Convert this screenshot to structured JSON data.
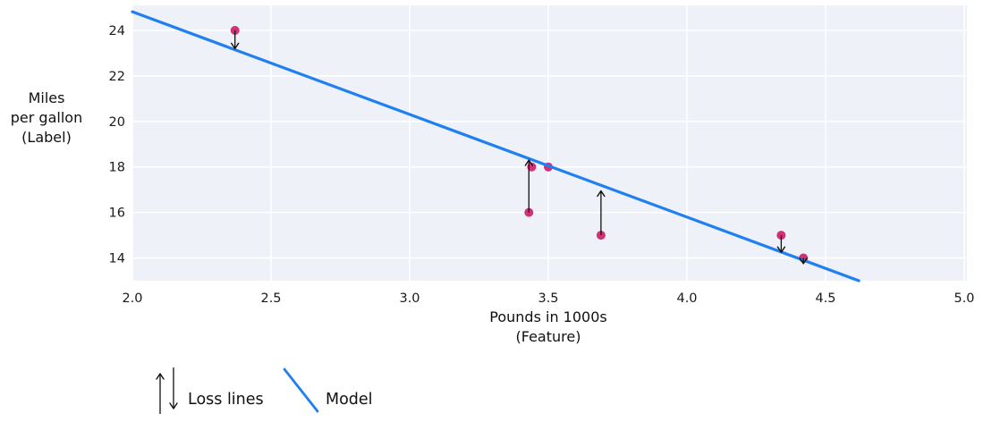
{
  "chart_data": {
    "type": "scatter",
    "title": "",
    "xlabel": "Pounds in 1000s\n(Feature)",
    "ylabel": "Miles\nper gallon\n(Label)",
    "xlim": [
      2.0,
      5.0
    ],
    "ylim": [
      13.0,
      25.1
    ],
    "grid": true,
    "x_ticks": [
      2.0,
      2.5,
      3.0,
      3.5,
      4.0,
      4.5,
      5.0
    ],
    "x_tick_labels": [
      "2.0",
      "2.5",
      "3.0",
      "3.5",
      "4.0",
      "4.5",
      "5.0"
    ],
    "y_ticks": [
      14,
      16,
      18,
      20,
      22,
      24
    ],
    "y_tick_labels": [
      "14",
      "16",
      "18",
      "20",
      "22",
      "24"
    ],
    "points": [
      {
        "x": 2.37,
        "y": 24
      },
      {
        "x": 3.43,
        "y": 16
      },
      {
        "x": 3.44,
        "y": 18
      },
      {
        "x": 3.5,
        "y": 18
      },
      {
        "x": 3.69,
        "y": 15
      },
      {
        "x": 4.34,
        "y": 15
      },
      {
        "x": 4.42,
        "y": 14
      }
    ],
    "model_line": {
      "x1": 2.0,
      "y1": 24.82,
      "x2": 4.62,
      "y2": 13.0
    },
    "loss_arrows": [
      {
        "x": 2.37,
        "y_from": 24,
        "y_to": 23.2,
        "direction": "down"
      },
      {
        "x": 3.43,
        "y_from": 16,
        "y_to": 18.3,
        "direction": "up"
      },
      {
        "x": 3.69,
        "y_from": 15,
        "y_to": 16.95,
        "direction": "up"
      },
      {
        "x": 4.34,
        "y_from": 15,
        "y_to": 14.25,
        "direction": "down"
      },
      {
        "x": 4.42,
        "y_from": 14,
        "y_to": 13.75,
        "direction": "down"
      }
    ],
    "legend_position": "bottom-left"
  },
  "legend": {
    "loss_label": "Loss lines",
    "model_label": "Model"
  },
  "colors": {
    "model_line": "#2080f0",
    "point": "#d23077",
    "plot_bg": "#eef1f7",
    "grid": "#ffffff",
    "arrow": "#111111",
    "text": "#1a1a1a"
  }
}
